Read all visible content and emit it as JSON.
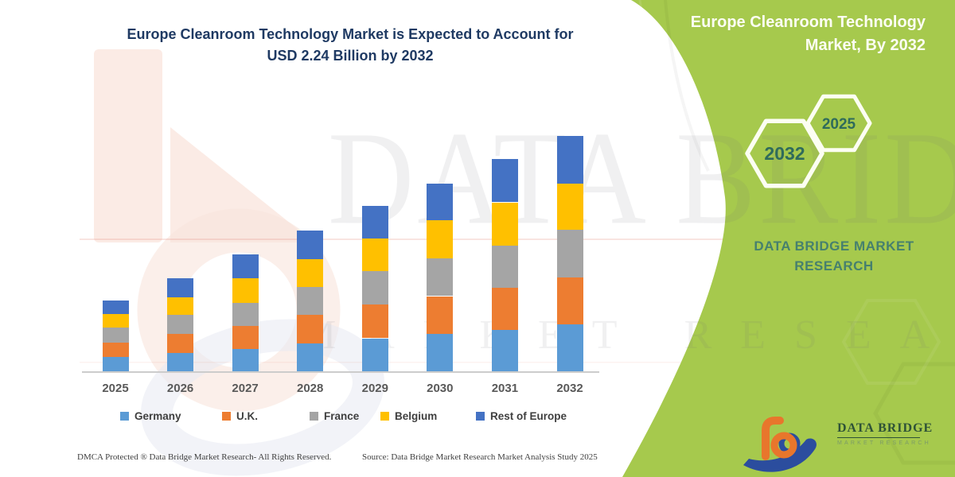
{
  "title": {
    "line1": "Europe Cleanroom Technology Market is Expected to Account for",
    "line2": "USD 2.24 Billion by 2032"
  },
  "chart_data": {
    "type": "bar",
    "stacked": true,
    "title": "Europe Cleanroom Technology Market is Expected to Account for USD 2.24 Billion by 2032",
    "unit": "USD Billion",
    "categories": [
      "2025",
      "2026",
      "2027",
      "2028",
      "2029",
      "2030",
      "2031",
      "2032"
    ],
    "series": [
      {
        "name": "Germany",
        "color": "#5B9BD5",
        "values": [
          0.14,
          0.18,
          0.22,
          0.27,
          0.32,
          0.36,
          0.4,
          0.45
        ]
      },
      {
        "name": "U.K.",
        "color": "#ED7D31",
        "values": [
          0.14,
          0.18,
          0.22,
          0.27,
          0.32,
          0.36,
          0.4,
          0.45
        ]
      },
      {
        "name": "France",
        "color": "#A5A5A5",
        "values": [
          0.14,
          0.18,
          0.22,
          0.27,
          0.32,
          0.36,
          0.4,
          0.45
        ]
      },
      {
        "name": "Belgium",
        "color": "#FFC000",
        "values": [
          0.13,
          0.17,
          0.23,
          0.26,
          0.31,
          0.36,
          0.41,
          0.44
        ]
      },
      {
        "name": "Rest of Europe",
        "color": "#4472C4",
        "values": [
          0.13,
          0.18,
          0.23,
          0.27,
          0.31,
          0.35,
          0.41,
          0.45
        ]
      }
    ],
    "totals": [
      0.68,
      0.89,
      1.12,
      1.34,
      1.58,
      1.79,
      2.02,
      2.24
    ],
    "ylim": [
      0,
      2.4
    ],
    "grid": false,
    "y_axis_visible": false,
    "legend_position": "bottom"
  },
  "footer": {
    "dmca": "DMCA Protected ® Data Bridge Market Research-  All Rights Reserved.",
    "source": "Source: Data Bridge Market Research  Market Analysis Study 2025"
  },
  "side_panel": {
    "heading": "Europe Cleanroom Technology Market, By 2032",
    "hexagon_labels": [
      "2032",
      "2025"
    ],
    "brand_line1": "DATA BRIDGE MARKET",
    "brand_line2": "RESEARCH",
    "colors": {
      "panel_green": "#A6C94D",
      "hex_outline": "#FCFEF2",
      "hex_label": "#2F6B5B",
      "brand_teal": "#46806E"
    }
  },
  "logo": {
    "name": "DATA BRIDGE",
    "tagline": "MARKET RESEARCH",
    "colors": {
      "orange": "#E8762C",
      "blue": "#2B4D9E",
      "text": "#2E5237",
      "tagline_color": "#7C9B67"
    }
  },
  "watermark": {
    "line1": "DATA BRIDGE",
    "line2": "MARKET RESEARCH"
  }
}
